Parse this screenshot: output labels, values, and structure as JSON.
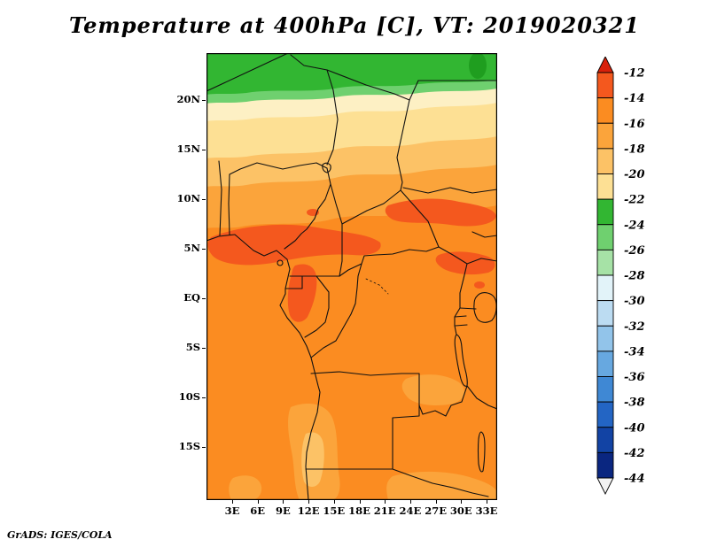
{
  "title": "Temperature at 400hPa [C], VT: 2019020321",
  "footer": {
    "credit": "GrADS: IGES/COLA"
  },
  "map": {
    "y_ticks": [
      "20N",
      "15N",
      "10N",
      "5N",
      "EQ",
      "5S",
      "10S",
      "15S"
    ],
    "x_ticks": [
      "3E",
      "6E",
      "9E",
      "12E",
      "15E",
      "18E",
      "21E",
      "24E",
      "27E",
      "30E",
      "33E"
    ]
  },
  "colorbar": {
    "values": [
      "-12",
      "-14",
      "-16",
      "-18",
      "-20",
      "-22",
      "-24",
      "-26",
      "-28",
      "-30",
      "-32",
      "-34",
      "-36",
      "-38",
      "-40",
      "-42",
      "-44"
    ],
    "segment_colors": [
      "#f4581e",
      "#fb8c21",
      "#fba43b",
      "#fcc266",
      "#fde094",
      "#32b632",
      "#6fd06f",
      "#a6e2a6",
      "#e2f3f9",
      "#bcdcf2",
      "#92c4ea",
      "#67a8e0",
      "#3f88d4",
      "#2365c4",
      "#1243a4",
      "#0a2680"
    ],
    "arrow_top_color": "#d8200a",
    "arrow_bottom_color": "#f2f2f2"
  },
  "palette": {
    "orange": "#fb8c21",
    "orange_red": "#f4581e",
    "orange_med": "#fba43b",
    "orange_light": "#fcc266",
    "yellow_pale": "#fde094",
    "cream": "#fdf0c4",
    "green": "#32b632",
    "green_light": "#6fd06f",
    "green_dark": "#1f9e1f"
  },
  "chart_data": {
    "type": "heatmap",
    "title": "Temperature at 400hPa [C], VT: 2019020321",
    "x_ticks": [
      "3E",
      "6E",
      "9E",
      "12E",
      "15E",
      "18E",
      "21E",
      "24E",
      "27E",
      "30E",
      "33E"
    ],
    "y_ticks": [
      "20N",
      "15N",
      "10N",
      "5N",
      "EQ",
      "5S",
      "10S",
      "15S"
    ],
    "colorbar_values_C": [
      -12,
      -14,
      -16,
      -18,
      -20,
      -22,
      -24,
      -26,
      -28,
      -30,
      -32,
      -34,
      -36,
      -38,
      -40,
      -42,
      -44
    ]
  }
}
